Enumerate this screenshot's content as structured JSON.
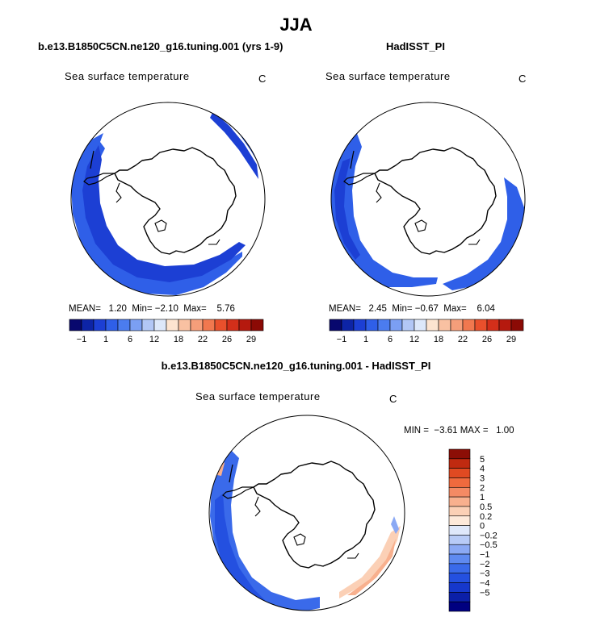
{
  "page": {
    "title": "JJA"
  },
  "panels": [
    {
      "title": "b.e13.B1850C5CN.ne120_g16.tuning.001 (yrs 1-9)",
      "variable": "Sea surface temperature",
      "units": "C",
      "stats": {
        "mean_label": "MEAN=",
        "mean": "1.20",
        "min_label": "Min=",
        "min": "−2.10",
        "max_label": "Max=",
        "max": "5.76"
      }
    },
    {
      "title": "HadISST_PI",
      "variable": "Sea surface temperature",
      "units": "C",
      "stats": {
        "mean_label": "MEAN=",
        "mean": "2.45",
        "min_label": "Min=",
        "min": "−0.67",
        "max_label": "Max=",
        "max": "6.04"
      }
    },
    {
      "title": "b.e13.B1850C5CN.ne120_g16.tuning.001 - HadISST_PI",
      "variable": "Sea surface temperature",
      "units": "C",
      "stats": {
        "min_label": "MIN =",
        "min": "−3.61",
        "max_label": "MAX =",
        "max": "1.00"
      }
    }
  ],
  "colors": {
    "sst_palette": [
      "#08086e",
      "#0d24a6",
      "#1c3fd4",
      "#2f5fe8",
      "#4b7cef",
      "#7b9ff3",
      "#b2c7f6",
      "#dde8fa",
      "#fde4d0",
      "#f9c1a2",
      "#f59e7a",
      "#f1784f",
      "#e9502c",
      "#d32f1a",
      "#b5190e",
      "#8b0a05"
    ],
    "diff_palette": [
      "#000080",
      "#0b1fa8",
      "#1638cc",
      "#2450e0",
      "#3a6aea",
      "#5f8af0",
      "#8ba9f4",
      "#b8cbf7",
      "#dfe8fb",
      "#fde9da",
      "#fbd0b6",
      "#f8b08e",
      "#f48a64",
      "#ef6a3e",
      "#e04a22",
      "#c02a10",
      "#8c0e06"
    ]
  },
  "chart_data": [
    {
      "type": "heatmap",
      "projection": "south-polar-stereographic",
      "title": "b.e13.B1850C5CN.ne120_g16.tuning.001 (yrs 1-9)",
      "variable": "Sea surface temperature",
      "units": "C",
      "mean": 1.2,
      "min": -2.1,
      "max": 5.76,
      "colorbar_levels": [
        -1,
        1,
        6,
        12,
        18,
        22,
        26,
        29
      ],
      "colorbar_tick_labels": [
        "−1",
        "1",
        "6",
        "12",
        "18",
        "22",
        "26",
        "29"
      ],
      "colorbar_orientation": "horizontal"
    },
    {
      "type": "heatmap",
      "projection": "south-polar-stereographic",
      "title": "HadISST_PI",
      "variable": "Sea surface temperature",
      "units": "C",
      "mean": 2.45,
      "min": -0.67,
      "max": 6.04,
      "colorbar_levels": [
        -1,
        1,
        6,
        12,
        18,
        22,
        26,
        29
      ],
      "colorbar_tick_labels": [
        "−1",
        "1",
        "6",
        "12",
        "18",
        "22",
        "26",
        "29"
      ],
      "colorbar_orientation": "horizontal"
    },
    {
      "type": "heatmap",
      "projection": "south-polar-stereographic",
      "title": "b.e13.B1850C5CN.ne120_g16.tuning.001 - HadISST_PI",
      "variable": "Sea surface temperature",
      "units": "C",
      "min": -3.61,
      "max": 1.0,
      "colorbar_levels": [
        -5,
        -4,
        -3,
        -2,
        -1,
        -0.5,
        -0.2,
        0,
        0.2,
        0.5,
        1,
        2,
        3,
        4,
        5
      ],
      "colorbar_tick_labels": [
        "5",
        "4",
        "3",
        "2",
        "1",
        "0.5",
        "0.2",
        "0",
        "−0.2",
        "−0.5",
        "−1",
        "−2",
        "−3",
        "−4",
        "−5"
      ],
      "colorbar_orientation": "vertical"
    }
  ]
}
